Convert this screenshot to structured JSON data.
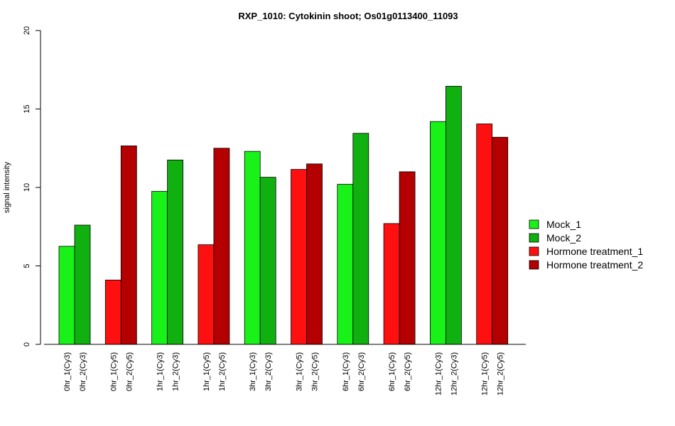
{
  "chart_data": {
    "type": "bar",
    "title": "RXP_1010: Cytokinin shoot; Os01g0113400_11093",
    "ylabel": "signal intensity",
    "xlabel": "",
    "ylim": [
      0,
      20
    ],
    "yticks": [
      0,
      5,
      10,
      15,
      20
    ],
    "grid": false,
    "legend_position": "right",
    "series": [
      {
        "name": "Mock_1",
        "color": "#18f218"
      },
      {
        "name": "Mock_2",
        "color": "#10b010"
      },
      {
        "name": "Hormone treatment_1",
        "color": "#ff1010"
      },
      {
        "name": "Hormone treatment_2",
        "color": "#b40000"
      }
    ],
    "bars": [
      {
        "label": "0hr_1(Cy3)",
        "series": 0,
        "value": 6.25
      },
      {
        "label": "0hr_2(Cy3)",
        "series": 1,
        "value": 7.6
      },
      {
        "label": "0hr_1(Cy5)",
        "series": 2,
        "value": 4.1
      },
      {
        "label": "0hr_2(Cy5)",
        "series": 3,
        "value": 12.65
      },
      {
        "label": "1hr_1(Cy3)",
        "series": 0,
        "value": 9.75
      },
      {
        "label": "1hr_2(Cy3)",
        "series": 1,
        "value": 11.75
      },
      {
        "label": "1hr_1(Cy5)",
        "series": 2,
        "value": 6.35
      },
      {
        "label": "1hr_2(Cy5)",
        "series": 3,
        "value": 12.5
      },
      {
        "label": "3hr_1(Cy3)",
        "series": 0,
        "value": 12.3
      },
      {
        "label": "3hr_2(Cy3)",
        "series": 1,
        "value": 10.65
      },
      {
        "label": "3hr_1(Cy5)",
        "series": 2,
        "value": 11.15
      },
      {
        "label": "3hr_2(Cy5)",
        "series": 3,
        "value": 11.5
      },
      {
        "label": "6hr_1(Cy3)",
        "series": 0,
        "value": 10.2
      },
      {
        "label": "6hr_2(Cy3)",
        "series": 1,
        "value": 13.45
      },
      {
        "label": "6hr_1(Cy5)",
        "series": 2,
        "value": 7.7
      },
      {
        "label": "6hr_2(Cy5)",
        "series": 3,
        "value": 11.0
      },
      {
        "label": "12hr_1(Cy3)",
        "series": 0,
        "value": 14.2
      },
      {
        "label": "12hr_2(Cy3)",
        "series": 1,
        "value": 16.45
      },
      {
        "label": "12hr_1(Cy5)",
        "series": 2,
        "value": 14.05
      },
      {
        "label": "12hr_2(Cy5)",
        "series": 3,
        "value": 13.2
      }
    ]
  }
}
